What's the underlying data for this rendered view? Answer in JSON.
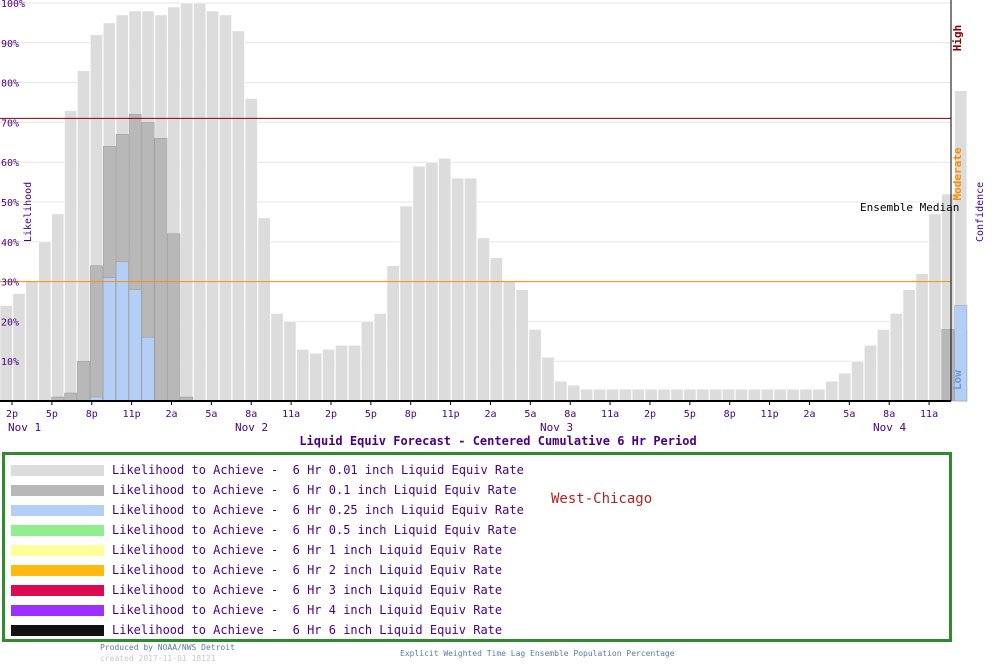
{
  "chart_data": {
    "type": "bar",
    "title": "Liquid Equiv Forecast - Centered Cumulative 6 Hr Period",
    "ylabel": "Likelihood",
    "right_label": "Confidence",
    "ylim": [
      0,
      100
    ],
    "y_ticks": [
      "10%",
      "20%",
      "30%",
      "40%",
      "50%",
      "60%",
      "70%",
      "80%",
      "90%",
      "100%"
    ],
    "x_tick_labels": [
      "2p",
      "5p",
      "8p",
      "11p",
      "2a",
      "5a",
      "8a",
      "11a",
      "2p",
      "5p",
      "8p",
      "11p",
      "2a",
      "5a",
      "8a",
      "11a",
      "2p",
      "5p",
      "8p",
      "11p",
      "2a",
      "5a",
      "8a",
      "11a"
    ],
    "date_labels": [
      "Nov  1",
      "Nov  2",
      "Nov  3",
      "Nov  4"
    ],
    "thresholds": [
      {
        "name": "High",
        "value": 71,
        "color": "#8b0000"
      },
      {
        "name": "Moderate",
        "value": 30,
        "color": "#ff8c00"
      },
      {
        "name": "Low",
        "value": 0,
        "color": "#6a9ad8"
      }
    ],
    "annotation": "Ensemble Median",
    "series": [
      {
        "name": "6 Hr 0.01 inch Liquid Equiv Rate",
        "color": "#dcdcdc",
        "values": [
          24,
          27,
          30,
          40,
          47,
          73,
          83,
          92,
          95,
          97,
          98,
          98,
          97,
          99,
          100,
          100,
          98,
          97,
          93,
          76,
          46,
          22,
          20,
          13,
          12,
          13,
          14,
          14,
          20,
          22,
          34,
          49,
          59,
          60,
          61,
          56,
          56,
          41,
          36,
          30,
          28,
          18,
          11,
          5,
          4,
          3,
          3,
          3,
          3,
          3,
          3,
          3,
          3,
          3,
          3,
          3,
          3,
          3,
          3,
          3,
          3,
          3,
          3,
          3,
          5,
          7,
          10,
          14,
          18,
          22,
          28,
          32,
          47,
          52,
          78
        ]
      },
      {
        "name": "6 Hr 0.1 inch Liquid Equiv Rate",
        "color": "#b8b8b8",
        "values": [
          0,
          0,
          0,
          0,
          1,
          2,
          10,
          34,
          64,
          67,
          72,
          70,
          66,
          42,
          1,
          0,
          0,
          0,
          0,
          0,
          0,
          0,
          0,
          0,
          0,
          0,
          0,
          0,
          0,
          0,
          0,
          0,
          0,
          0,
          0,
          0,
          0,
          0,
          0,
          0,
          0,
          0,
          0,
          0,
          0,
          0,
          0,
          0,
          0,
          0,
          0,
          0,
          0,
          0,
          0,
          0,
          0,
          0,
          0,
          0,
          0,
          0,
          0,
          0,
          0,
          0,
          0,
          0,
          0,
          0,
          0,
          0,
          0,
          18,
          18
        ]
      },
      {
        "name": "6 Hr 0.25 inch Liquid Equiv Rate",
        "color": "#b3cff5",
        "values": [
          0,
          0,
          0,
          0,
          0,
          0,
          0,
          1,
          31,
          35,
          28,
          16,
          0,
          0,
          0,
          0,
          0,
          0,
          0,
          0,
          0,
          0,
          0,
          0,
          0,
          0,
          0,
          0,
          0,
          0,
          0,
          0,
          0,
          0,
          0,
          0,
          0,
          0,
          0,
          0,
          0,
          0,
          0,
          0,
          0,
          0,
          0,
          0,
          0,
          0,
          0,
          0,
          0,
          0,
          0,
          0,
          0,
          0,
          0,
          0,
          0,
          0,
          0,
          0,
          0,
          0,
          0,
          0,
          0,
          0,
          0,
          0,
          0,
          0,
          24
        ]
      }
    ]
  },
  "legend": {
    "location": "West-Chicago",
    "items": [
      {
        "label": "Likelihood to Achieve -  6 Hr 0.01 inch Liquid Equiv Rate",
        "color": "#dcdcdc"
      },
      {
        "label": "Likelihood to Achieve -  6 Hr 0.1 inch Liquid Equiv Rate",
        "color": "#b8b8b8"
      },
      {
        "label": "Likelihood to Achieve -  6 Hr 0.25 inch Liquid Equiv Rate",
        "color": "#b3cff5"
      },
      {
        "label": "Likelihood to Achieve -  6 Hr 0.5 inch Liquid Equiv Rate",
        "color": "#90ee90"
      },
      {
        "label": "Likelihood to Achieve -  6 Hr 1 inch Liquid Equiv Rate",
        "color": "#ffff99"
      },
      {
        "label": "Likelihood to Achieve -  6 Hr 2 inch Liquid Equiv Rate",
        "color": "#ffb90f"
      },
      {
        "label": "Likelihood to Achieve -  6 Hr 3 inch Liquid Equiv Rate",
        "color": "#dc0a50"
      },
      {
        "label": "Likelihood to Achieve -  6 Hr 4 inch Liquid Equiv Rate",
        "color": "#9b30ff"
      },
      {
        "label": "Likelihood to Achieve -  6 Hr 6 inch Liquid Equiv Rate",
        "color": "#111111"
      }
    ]
  },
  "footer": {
    "produced_by": "Produced by NOAA/NWS Detroit",
    "created": "created 2017-11-01 18121",
    "method": "Explicit Weighted Time Lag Ensemble Population Percentage"
  }
}
